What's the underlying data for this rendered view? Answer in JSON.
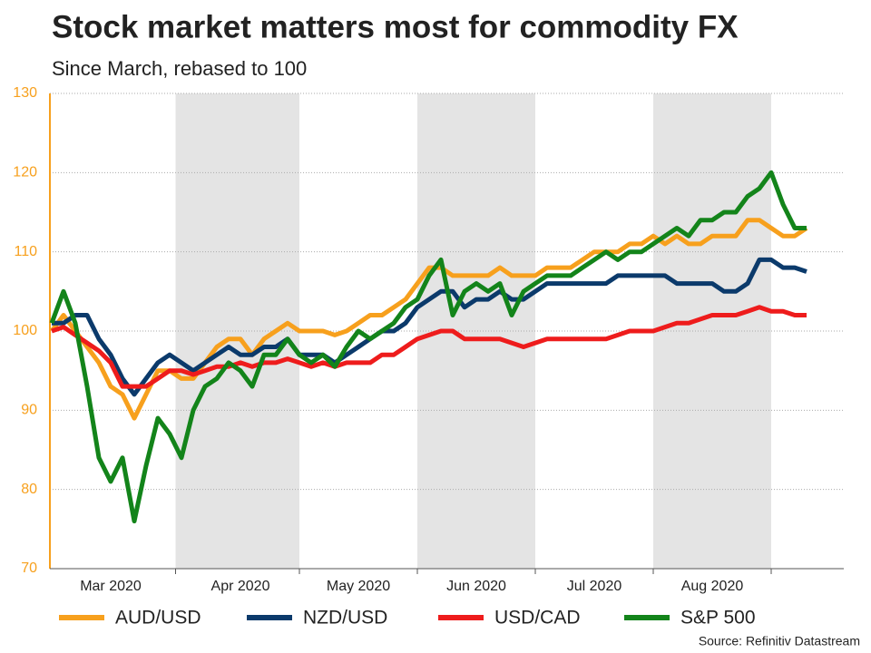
{
  "chart_data": {
    "type": "line",
    "title": "Stock market matters most for commodity FX",
    "subtitle": "Since March, rebased to 100",
    "source": "Source: Refinitiv Datastream",
    "categories": [
      null,
      null,
      null,
      null,
      null,
      "Mar 2020",
      null,
      null,
      null,
      null,
      null,
      null,
      null,
      null,
      null,
      null,
      "Apr 2020",
      null,
      null,
      null,
      null,
      null,
      null,
      null,
      null,
      null,
      "May 2020",
      null,
      null,
      null,
      null,
      null,
      null,
      null,
      null,
      null,
      "Jun 2020",
      null,
      null,
      null,
      null,
      null,
      null,
      null,
      null,
      null,
      "Jul 2020",
      null,
      null,
      null,
      null,
      null,
      null,
      null,
      null,
      null,
      "Aug 2020",
      null,
      null,
      null,
      null,
      null,
      null,
      null,
      null
    ],
    "series": [
      {
        "name": "AUD/USD",
        "color": "#f7a01d",
        "values": [
          100,
          102,
          100,
          98,
          96,
          93,
          92,
          89,
          92,
          95,
          95,
          94,
          94,
          96,
          98,
          99,
          99,
          97,
          99,
          100,
          101,
          100,
          100,
          100,
          99.5,
          100,
          101,
          102,
          102,
          103,
          104,
          106,
          108,
          108,
          107,
          107,
          107,
          107,
          108,
          107,
          107,
          107,
          108,
          108,
          108,
          109,
          110,
          110,
          110,
          111,
          111,
          112,
          111,
          112,
          111,
          111,
          112,
          112,
          112,
          114,
          114,
          113,
          112,
          112,
          113
        ]
      },
      {
        "name": "NZD/USD",
        "color": "#0b3a6b",
        "values": [
          101,
          101,
          102,
          102,
          99,
          97,
          94,
          92,
          94,
          96,
          97,
          96,
          95,
          96,
          97,
          98,
          97,
          97,
          98,
          98,
          99,
          97,
          97,
          97,
          96,
          97,
          98,
          99,
          100,
          100,
          101,
          103,
          104,
          105,
          105,
          103,
          104,
          104,
          105,
          104,
          104,
          105,
          106,
          106,
          106,
          106,
          106,
          106,
          107,
          107,
          107,
          107,
          107,
          106,
          106,
          106,
          106,
          105,
          105,
          106,
          109,
          109,
          108,
          108,
          107.5
        ]
      },
      {
        "name": "USD/CAD",
        "color": "#ee1c1c",
        "values": [
          100,
          100.5,
          99.5,
          98.5,
          97.5,
          96,
          93,
          93,
          93,
          94,
          95,
          95,
          94.5,
          95,
          95.5,
          95.5,
          96,
          95.5,
          96,
          96,
          96.5,
          96,
          95.5,
          96,
          95.5,
          96,
          96,
          96,
          97,
          97,
          98,
          99,
          99.5,
          100,
          100,
          99,
          99,
          99,
          99,
          98.5,
          98,
          98.5,
          99,
          99,
          99,
          99,
          99,
          99,
          99.5,
          100,
          100,
          100,
          100.5,
          101,
          101,
          101.5,
          102,
          102,
          102,
          102.5,
          103,
          102.5,
          102.5,
          102,
          102
        ]
      },
      {
        "name": "S&P 500",
        "color": "#13841a",
        "values": [
          101,
          105,
          101,
          93,
          84,
          81,
          84,
          76,
          83,
          89,
          87,
          84,
          90,
          93,
          94,
          96,
          95,
          93,
          97,
          97,
          99,
          97,
          96,
          97,
          95.5,
          98,
          100,
          99,
          100,
          101,
          103,
          104,
          107,
          109,
          102,
          105,
          106,
          105,
          106,
          102,
          105,
          106,
          107,
          107,
          107,
          108,
          109,
          110,
          109,
          110,
          110,
          111,
          112,
          113,
          112,
          114,
          114,
          115,
          115,
          117,
          118,
          120,
          116,
          113,
          113
        ]
      }
    ],
    "ylim": [
      70,
      130
    ],
    "yticks": [
      70,
      80,
      90,
      100,
      110,
      120,
      130
    ],
    "axis_color": "#f7a01d",
    "shade_color": "#e4e4e4",
    "grid": true
  }
}
